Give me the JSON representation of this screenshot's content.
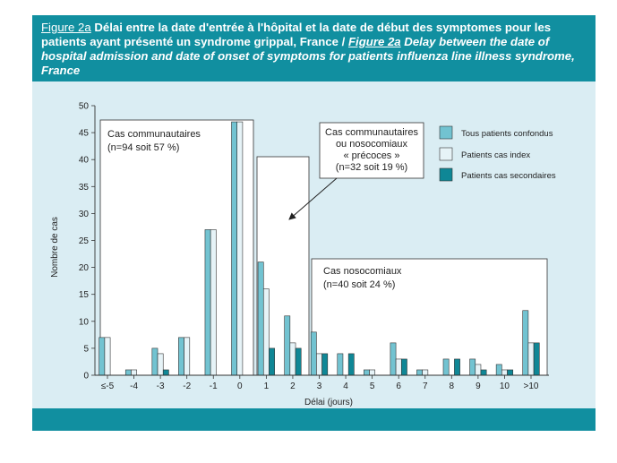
{
  "header": {
    "label_fr": "Figure 2a",
    "title_fr": "Délai entre la date d'entrée à l'hôpital et la date de début des symptomes pour les patients ayant présenté un syndrome grippal, France /",
    "label_en": "Figure 2a",
    "title_en": "Delay between the date of hospital admission and date of onset of symptoms for patients influenza line illness syndrome, France"
  },
  "colors": {
    "header_bg": "#118fa0",
    "panel_bg": "#daedf3",
    "tous": "#72c3d1",
    "index": "#e6f3f7",
    "secondaires": "#0f8796"
  },
  "chart_data": {
    "type": "bar",
    "xlabel": "Délai (jours)",
    "ylabel": "Nombre de cas",
    "ylim": [
      0,
      50
    ],
    "yticks": [
      "0",
      "5",
      "10",
      "15",
      "20",
      "25",
      "30",
      "35",
      "40",
      "45",
      "50"
    ],
    "categories": [
      "≤-5",
      "-4",
      "-3",
      "-2",
      "-1",
      "0",
      "1",
      "2",
      "3",
      "4",
      "5",
      "6",
      "7",
      "8",
      "9",
      "10",
      ">10"
    ],
    "series": [
      {
        "name": "Tous patients confondus",
        "color_key": "tous",
        "values": [
          7,
          1,
          5,
          7,
          27,
          47,
          21,
          11,
          8,
          4,
          1,
          6,
          1,
          3,
          3,
          2,
          12
        ]
      },
      {
        "name": "Patients cas index",
        "color_key": "index",
        "values": [
          7,
          1,
          4,
          7,
          27,
          47,
          16,
          6,
          4,
          0,
          1,
          3,
          1,
          0,
          2,
          1,
          6
        ]
      },
      {
        "name": "Patients cas secondaires",
        "color_key": "secondaires",
        "values": [
          0,
          0,
          1,
          0,
          0,
          0,
          5,
          5,
          4,
          4,
          0,
          3,
          0,
          3,
          1,
          1,
          6
        ]
      }
    ],
    "annotations": [
      {
        "line1": "Cas communautaires",
        "line2": "(n=94 soit 57 %)"
      },
      {
        "line1": "Cas communautaires",
        "line2": "ou nosocomiaux",
        "line3": "« précoces »",
        "line4": "(n=32 soit 19 %)"
      },
      {
        "line1": "Cas nosocomiaux",
        "line2": "(n=40 soit 24 %)"
      }
    ]
  }
}
